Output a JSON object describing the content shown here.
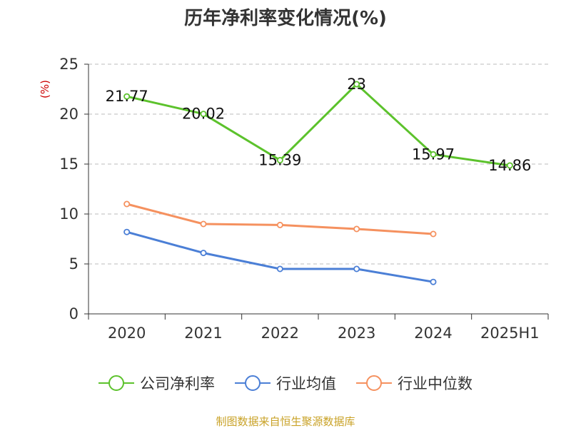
{
  "chart_data": {
    "type": "line",
    "title": "历年净利率变化情况(%)",
    "y_unit": "(%)",
    "categories": [
      "2020",
      "2021",
      "2022",
      "2023",
      "2024",
      "2025H1"
    ],
    "ylim": [
      0,
      25
    ],
    "yticks": [
      0,
      5,
      10,
      15,
      20,
      25
    ],
    "grid": true,
    "legend_position": "bottom",
    "series": [
      {
        "name": "公司净利率",
        "color": "#5cc22c",
        "values": [
          21.77,
          20.02,
          15.39,
          23,
          15.97,
          14.86
        ],
        "labels": [
          "21.77",
          "20.02",
          "15.39",
          "23",
          "15.97",
          "14.86"
        ]
      },
      {
        "name": "行业均值",
        "color": "#4b7fd6",
        "values": [
          8.2,
          6.1,
          4.5,
          4.5,
          3.2,
          null
        ],
        "labels": null
      },
      {
        "name": "行业中位数",
        "color": "#f5915f",
        "values": [
          11.0,
          9.0,
          8.9,
          8.5,
          8.0,
          null
        ],
        "labels": null
      }
    ],
    "source": "制图数据来自恒生聚源数据库"
  }
}
